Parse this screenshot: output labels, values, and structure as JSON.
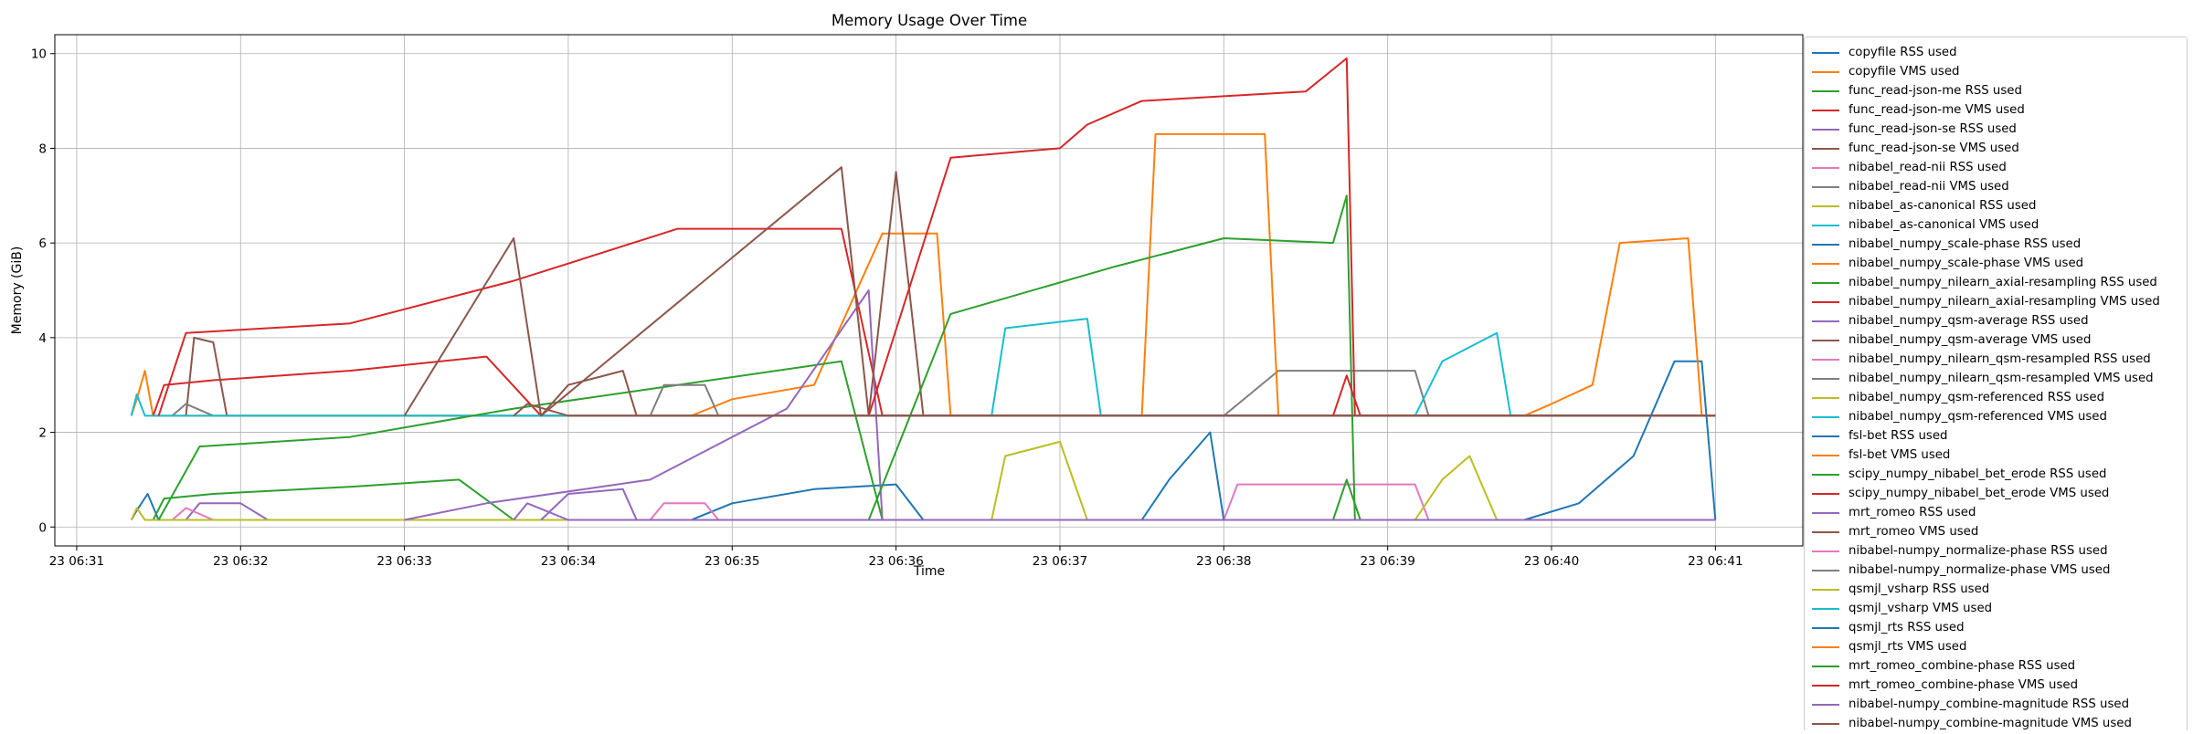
{
  "chart_data": {
    "type": "line",
    "title": "Memory Usage Over Time",
    "xlabel": "Time",
    "ylabel": "Memory (GiB)",
    "x_tick_labels": [
      "23 06:31",
      "23 06:32",
      "23 06:33",
      "23 06:34",
      "23 06:35",
      "23 06:36",
      "23 06:37",
      "23 06:38",
      "23 06:39",
      "23 06:40",
      "23 06:41"
    ],
    "y_tick_labels": [
      "0",
      "2",
      "4",
      "6",
      "8",
      "10"
    ],
    "xlim": [
      "06:30:52",
      "06:41:32"
    ],
    "ylim": [
      -0.4,
      10.4
    ],
    "grid": true,
    "legend_position": "outside-right",
    "series": [
      {
        "name": "copyfile RSS used",
        "color": "#1f77b4",
        "points": [
          [
            "06:31:20",
            0.15
          ],
          [
            "06:31:22",
            0.35
          ],
          [
            "06:31:26",
            0.7
          ],
          [
            "06:31:30",
            0.15
          ],
          [
            "06:41:00",
            0.15
          ]
        ]
      },
      {
        "name": "copyfile VMS used",
        "color": "#ff7f0e",
        "points": [
          [
            "06:31:20",
            2.35
          ],
          [
            "06:31:22",
            2.7
          ],
          [
            "06:31:25",
            3.3
          ],
          [
            "06:31:28",
            2.35
          ],
          [
            "06:41:00",
            2.35
          ]
        ]
      },
      {
        "name": "func_read-json-me RSS used",
        "color": "#2ca02c",
        "points": [
          [
            "06:31:28",
            0.15
          ],
          [
            "06:31:32",
            0.6
          ],
          [
            "06:31:50",
            0.7
          ],
          [
            "06:32:40",
            0.85
          ],
          [
            "06:33:20",
            1.0
          ],
          [
            "06:33:40",
            0.15
          ],
          [
            "06:41:00",
            0.15
          ]
        ]
      },
      {
        "name": "func_read-json-me VMS used",
        "color": "#d62728",
        "points": [
          [
            "06:31:28",
            2.35
          ],
          [
            "06:31:32",
            3.0
          ],
          [
            "06:31:50",
            3.1
          ],
          [
            "06:32:40",
            3.3
          ],
          [
            "06:33:30",
            3.6
          ],
          [
            "06:33:50",
            2.35
          ],
          [
            "06:41:00",
            2.35
          ]
        ]
      },
      {
        "name": "func_read-json-se RSS used",
        "color": "#9467bd",
        "points": [
          [
            "06:31:40",
            0.15
          ],
          [
            "06:31:45",
            0.5
          ],
          [
            "06:32:00",
            0.5
          ],
          [
            "06:32:10",
            0.15
          ],
          [
            "06:41:00",
            0.15
          ]
        ]
      },
      {
        "name": "func_read-json-se VMS used",
        "color": "#8c564b",
        "points": [
          [
            "06:31:40",
            2.35
          ],
          [
            "06:31:43",
            4.0
          ],
          [
            "06:31:50",
            3.9
          ],
          [
            "06:31:55",
            2.35
          ],
          [
            "06:41:00",
            2.35
          ]
        ]
      },
      {
        "name": "nibabel_read-nii RSS used",
        "color": "#e377c2",
        "points": [
          [
            "06:31:35",
            0.15
          ],
          [
            "06:31:40",
            0.4
          ],
          [
            "06:31:50",
            0.15
          ],
          [
            "06:41:00",
            0.15
          ]
        ]
      },
      {
        "name": "nibabel_read-nii VMS used",
        "color": "#7f7f7f",
        "points": [
          [
            "06:31:35",
            2.35
          ],
          [
            "06:31:40",
            2.6
          ],
          [
            "06:31:50",
            2.35
          ],
          [
            "06:41:00",
            2.35
          ]
        ]
      },
      {
        "name": "nibabel_as-canonical RSS used",
        "color": "#bcbd22",
        "points": [
          [
            "06:31:20",
            0.15
          ],
          [
            "06:31:22",
            0.4
          ],
          [
            "06:31:25",
            0.15
          ],
          [
            "06:41:00",
            0.15
          ]
        ]
      },
      {
        "name": "nibabel_as-canonical VMS used",
        "color": "#17becf",
        "points": [
          [
            "06:31:20",
            2.35
          ],
          [
            "06:31:22",
            2.8
          ],
          [
            "06:31:25",
            2.35
          ],
          [
            "06:41:00",
            2.35
          ]
        ]
      },
      {
        "name": "nibabel_numpy_scale-phase RSS used",
        "color": "#1f77b4",
        "points": [
          [
            "06:34:45",
            0.15
          ],
          [
            "06:35:00",
            0.5
          ],
          [
            "06:35:30",
            0.8
          ],
          [
            "06:36:00",
            0.9
          ],
          [
            "06:36:10",
            0.15
          ],
          [
            "06:41:00",
            0.15
          ]
        ]
      },
      {
        "name": "nibabel_numpy_scale-phase VMS used",
        "color": "#ff7f0e",
        "points": [
          [
            "06:34:45",
            2.35
          ],
          [
            "06:35:00",
            2.7
          ],
          [
            "06:35:30",
            3.0
          ],
          [
            "06:35:55",
            6.2
          ],
          [
            "06:36:15",
            6.2
          ],
          [
            "06:36:20",
            2.35
          ],
          [
            "06:41:00",
            2.35
          ]
        ]
      },
      {
        "name": "nibabel_numpy_nilearn_axial-resampling RSS used",
        "color": "#2ca02c",
        "points": [
          [
            "06:31:30",
            0.15
          ],
          [
            "06:31:45",
            1.7
          ],
          [
            "06:32:40",
            1.9
          ],
          [
            "06:33:40",
            2.5
          ],
          [
            "06:34:40",
            3.0
          ],
          [
            "06:35:40",
            3.5
          ],
          [
            "06:35:55",
            0.15
          ],
          [
            "06:41:00",
            0.15
          ]
        ]
      },
      {
        "name": "nibabel_numpy_nilearn_axial-resampling VMS used",
        "color": "#d62728",
        "points": [
          [
            "06:31:30",
            2.35
          ],
          [
            "06:31:40",
            4.1
          ],
          [
            "06:32:40",
            4.3
          ],
          [
            "06:33:40",
            5.2
          ],
          [
            "06:34:40",
            6.3
          ],
          [
            "06:35:40",
            6.3
          ],
          [
            "06:35:55",
            2.35
          ],
          [
            "06:41:00",
            2.35
          ]
        ]
      },
      {
        "name": "nibabel_numpy_qsm-average RSS used",
        "color": "#9467bd",
        "points": [
          [
            "06:33:00",
            0.15
          ],
          [
            "06:33:30",
            0.5
          ],
          [
            "06:34:30",
            1.0
          ],
          [
            "06:35:20",
            2.5
          ],
          [
            "06:35:50",
            5.0
          ],
          [
            "06:35:55",
            0.15
          ],
          [
            "06:41:00",
            0.15
          ]
        ]
      },
      {
        "name": "nibabel_numpy_qsm-average VMS used",
        "color": "#8c564b",
        "points": [
          [
            "06:33:00",
            2.35
          ],
          [
            "06:33:40",
            6.1
          ],
          [
            "06:33:50",
            2.35
          ],
          [
            "06:35:40",
            7.6
          ],
          [
            "06:35:50",
            2.35
          ],
          [
            "06:36:00",
            7.5
          ],
          [
            "06:36:10",
            2.35
          ],
          [
            "06:41:00",
            2.35
          ]
        ]
      },
      {
        "name": "nibabel_numpy_nilearn_qsm-resampled RSS used",
        "color": "#e377c2",
        "points": [
          [
            "06:38:00",
            0.15
          ],
          [
            "06:38:05",
            0.9
          ],
          [
            "06:39:10",
            0.9
          ],
          [
            "06:39:15",
            0.15
          ],
          [
            "06:41:00",
            0.15
          ]
        ]
      },
      {
        "name": "nibabel_numpy_nilearn_qsm-resampled VMS used",
        "color": "#7f7f7f",
        "points": [
          [
            "06:38:00",
            2.35
          ],
          [
            "06:38:20",
            3.3
          ],
          [
            "06:39:10",
            3.3
          ],
          [
            "06:39:15",
            2.35
          ],
          [
            "06:41:00",
            2.35
          ]
        ]
      },
      {
        "name": "nibabel_numpy_qsm-referenced RSS used",
        "color": "#bcbd22",
        "points": [
          [
            "06:36:35",
            0.15
          ],
          [
            "06:36:40",
            1.5
          ],
          [
            "06:37:00",
            1.8
          ],
          [
            "06:37:10",
            0.15
          ],
          [
            "06:41:00",
            0.15
          ]
        ]
      },
      {
        "name": "nibabel_numpy_qsm-referenced VMS used",
        "color": "#17becf",
        "points": [
          [
            "06:36:35",
            2.35
          ],
          [
            "06:36:40",
            4.2
          ],
          [
            "06:37:10",
            4.4
          ],
          [
            "06:37:15",
            2.35
          ],
          [
            "06:41:00",
            2.35
          ]
        ]
      },
      {
        "name": "fsl-bet RSS used",
        "color": "#1f77b4",
        "points": [
          [
            "06:37:30",
            0.15
          ],
          [
            "06:37:40",
            1.0
          ],
          [
            "06:37:55",
            2.0
          ],
          [
            "06:38:00",
            0.15
          ],
          [
            "06:41:00",
            0.15
          ]
        ]
      },
      {
        "name": "fsl-bet VMS used",
        "color": "#ff7f0e",
        "points": [
          [
            "06:37:30",
            2.35
          ],
          [
            "06:37:35",
            8.3
          ],
          [
            "06:38:15",
            8.3
          ],
          [
            "06:38:20",
            2.35
          ],
          [
            "06:41:00",
            2.35
          ]
        ]
      },
      {
        "name": "scipy_numpy_nibabel_bet_erode RSS used",
        "color": "#2ca02c",
        "points": [
          [
            "06:35:50",
            0.15
          ],
          [
            "06:36:20",
            4.5
          ],
          [
            "06:37:20",
            5.5
          ],
          [
            "06:38:00",
            6.1
          ],
          [
            "06:38:40",
            6.0
          ],
          [
            "06:38:45",
            7.0
          ],
          [
            "06:38:48",
            0.15
          ],
          [
            "06:41:00",
            0.15
          ]
        ]
      },
      {
        "name": "scipy_numpy_nibabel_bet_erode VMS used",
        "color": "#d62728",
        "points": [
          [
            "06:35:50",
            2.35
          ],
          [
            "06:36:20",
            7.8
          ],
          [
            "06:37:00",
            8.0
          ],
          [
            "06:37:10",
            8.5
          ],
          [
            "06:37:30",
            9.0
          ],
          [
            "06:38:30",
            9.2
          ],
          [
            "06:38:45",
            9.9
          ],
          [
            "06:38:48",
            2.35
          ],
          [
            "06:41:00",
            2.35
          ]
        ]
      },
      {
        "name": "mrt_romeo RSS used",
        "color": "#9467bd",
        "points": [
          [
            "06:33:50",
            0.15
          ],
          [
            "06:34:00",
            0.7
          ],
          [
            "06:34:20",
            0.8
          ],
          [
            "06:34:25",
            0.15
          ],
          [
            "06:41:00",
            0.15
          ]
        ]
      },
      {
        "name": "mrt_romeo VMS used",
        "color": "#8c564b",
        "points": [
          [
            "06:33:50",
            2.35
          ],
          [
            "06:34:00",
            3.0
          ],
          [
            "06:34:20",
            3.3
          ],
          [
            "06:34:25",
            2.35
          ],
          [
            "06:41:00",
            2.35
          ]
        ]
      },
      {
        "name": "nibabel-numpy_normalize-phase RSS used",
        "color": "#e377c2",
        "points": [
          [
            "06:34:30",
            0.15
          ],
          [
            "06:34:35",
            0.5
          ],
          [
            "06:34:50",
            0.5
          ],
          [
            "06:34:55",
            0.15
          ],
          [
            "06:41:00",
            0.15
          ]
        ]
      },
      {
        "name": "nibabel-numpy_normalize-phase VMS used",
        "color": "#7f7f7f",
        "points": [
          [
            "06:34:30",
            2.35
          ],
          [
            "06:34:35",
            3.0
          ],
          [
            "06:34:50",
            3.0
          ],
          [
            "06:34:55",
            2.35
          ],
          [
            "06:41:00",
            2.35
          ]
        ]
      },
      {
        "name": "qsmjl_vsharp RSS used",
        "color": "#bcbd22",
        "points": [
          [
            "06:39:10",
            0.15
          ],
          [
            "06:39:20",
            1.0
          ],
          [
            "06:39:30",
            1.5
          ],
          [
            "06:39:40",
            0.15
          ],
          [
            "06:41:00",
            0.15
          ]
        ]
      },
      {
        "name": "qsmjl_vsharp VMS used",
        "color": "#17becf",
        "points": [
          [
            "06:39:10",
            2.35
          ],
          [
            "06:39:20",
            3.5
          ],
          [
            "06:39:40",
            4.1
          ],
          [
            "06:39:45",
            2.35
          ],
          [
            "06:41:00",
            2.35
          ]
        ]
      },
      {
        "name": "qsmjl_rts RSS used",
        "color": "#1f77b4",
        "points": [
          [
            "06:39:50",
            0.15
          ],
          [
            "06:40:10",
            0.5
          ],
          [
            "06:40:30",
            1.5
          ],
          [
            "06:40:45",
            3.5
          ],
          [
            "06:40:55",
            3.5
          ],
          [
            "06:41:00",
            0.15
          ]
        ]
      },
      {
        "name": "qsmjl_rts VMS used",
        "color": "#ff7f0e",
        "points": [
          [
            "06:39:50",
            2.35
          ],
          [
            "06:40:00",
            2.6
          ],
          [
            "06:40:15",
            3.0
          ],
          [
            "06:40:25",
            6.0
          ],
          [
            "06:40:50",
            6.1
          ],
          [
            "06:40:55",
            2.35
          ],
          [
            "06:41:00",
            2.35
          ]
        ]
      },
      {
        "name": "mrt_romeo_combine-phase RSS used",
        "color": "#2ca02c",
        "points": [
          [
            "06:38:40",
            0.15
          ],
          [
            "06:38:45",
            1.0
          ],
          [
            "06:38:50",
            0.15
          ],
          [
            "06:41:00",
            0.15
          ]
        ]
      },
      {
        "name": "mrt_romeo_combine-phase VMS used",
        "color": "#d62728",
        "points": [
          [
            "06:38:40",
            2.35
          ],
          [
            "06:38:45",
            3.2
          ],
          [
            "06:38:50",
            2.35
          ],
          [
            "06:41:00",
            2.35
          ]
        ]
      },
      {
        "name": "nibabel-numpy_combine-magnitude RSS used",
        "color": "#9467bd",
        "points": [
          [
            "06:33:40",
            0.15
          ],
          [
            "06:33:45",
            0.5
          ],
          [
            "06:34:00",
            0.15
          ],
          [
            "06:41:00",
            0.15
          ]
        ]
      },
      {
        "name": "nibabel-numpy_combine-magnitude VMS used",
        "color": "#8c564b",
        "points": [
          [
            "06:33:40",
            2.35
          ],
          [
            "06:33:45",
            2.6
          ],
          [
            "06:34:00",
            2.35
          ],
          [
            "06:41:00",
            2.35
          ]
        ]
      }
    ]
  }
}
